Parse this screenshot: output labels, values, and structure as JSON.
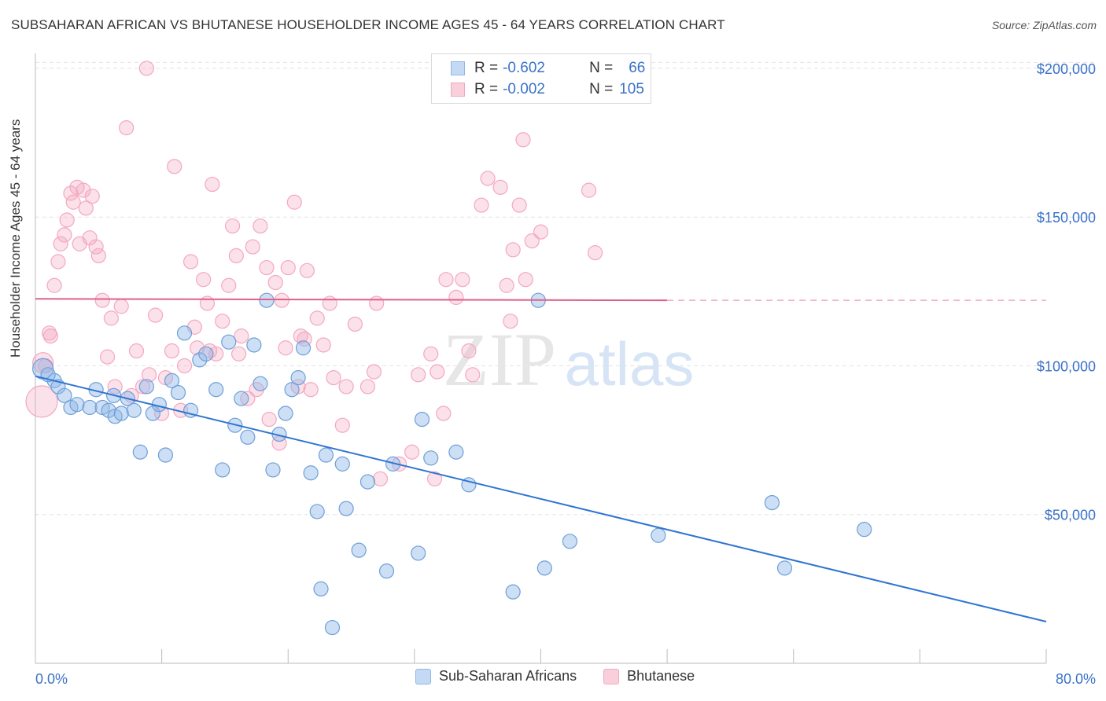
{
  "header": {
    "title": "SUBSAHARAN AFRICAN VS BHUTANESE HOUSEHOLDER INCOME AGES 45 - 64 YEARS CORRELATION CHART",
    "source": "Source: ZipAtlas.com"
  },
  "legend": {
    "rows": [
      {
        "r_label": "R =",
        "r_value": "-0.602",
        "n_label": "N =",
        "n_value": "66"
      },
      {
        "r_label": "R =",
        "r_value": "-0.002",
        "n_label": "N =",
        "n_value": "105"
      }
    ]
  },
  "watermark": {
    "zip": "ZIP",
    "atlas": "atlas"
  },
  "chart_data": {
    "type": "scatter",
    "title": "SUBSAHARAN AFRICAN VS BHUTANESE HOUSEHOLDER INCOME AGES 45 - 64 YEARS CORRELATION CHART",
    "xlabel": "",
    "ylabel": "Householder Income Ages 45 - 64 years",
    "xlim": [
      0,
      80
    ],
    "ylim": [
      0,
      205000
    ],
    "x_tick_labels": [
      "0.0%",
      "80.0%"
    ],
    "y_ticks": [
      50000,
      100000,
      150000,
      200000
    ],
    "y_tick_labels": [
      "$50,000",
      "$100,000",
      "$150,000",
      "$200,000"
    ],
    "grid": true,
    "legend_position": "bottom-center",
    "colors": {
      "blue": "#8fb8e8",
      "blue_line": "#2f75d1",
      "pink": "#f4a8c0",
      "pink_line": "#e0608a",
      "tick_text": "#3a72c8"
    },
    "series": [
      {
        "name": "Sub-Saharan Africans",
        "r": -0.602,
        "n": 66,
        "trend": {
          "x": [
            0,
            80
          ],
          "y": [
            96500,
            14000
          ],
          "dashed_after": null
        },
        "points": [
          [
            0.6,
            99000
          ],
          [
            1.5,
            95000
          ],
          [
            1.8,
            93000
          ],
          [
            2.3,
            90000
          ],
          [
            2.8,
            86000
          ],
          [
            3.3,
            87000
          ],
          [
            4.3,
            86000
          ],
          [
            4.8,
            92000
          ],
          [
            5.3,
            86000
          ],
          [
            5.8,
            85000
          ],
          [
            6.2,
            90000
          ],
          [
            6.3,
            83000
          ],
          [
            6.8,
            84000
          ],
          [
            7.3,
            89000
          ],
          [
            7.8,
            85000
          ],
          [
            8.3,
            71000
          ],
          [
            8.8,
            93000
          ],
          [
            9.3,
            84000
          ],
          [
            9.8,
            87000
          ],
          [
            10.3,
            70000
          ],
          [
            10.8,
            95000
          ],
          [
            11.3,
            91000
          ],
          [
            11.8,
            111000
          ],
          [
            12.3,
            85000
          ],
          [
            13.0,
            102000
          ],
          [
            13.5,
            104000
          ],
          [
            14.3,
            92000
          ],
          [
            14.8,
            65000
          ],
          [
            15.3,
            108000
          ],
          [
            15.8,
            80000
          ],
          [
            16.3,
            89000
          ],
          [
            16.8,
            76000
          ],
          [
            17.3,
            107000
          ],
          [
            17.8,
            94000
          ],
          [
            18.3,
            122000
          ],
          [
            18.8,
            65000
          ],
          [
            19.3,
            77000
          ],
          [
            19.8,
            84000
          ],
          [
            20.3,
            92000
          ],
          [
            20.8,
            96000
          ],
          [
            21.2,
            106000
          ],
          [
            21.8,
            64000
          ],
          [
            22.3,
            51000
          ],
          [
            22.6,
            25000
          ],
          [
            23.0,
            70000
          ],
          [
            23.5,
            12000
          ],
          [
            24.3,
            67000
          ],
          [
            24.6,
            52000
          ],
          [
            25.6,
            38000
          ],
          [
            26.3,
            61000
          ],
          [
            27.8,
            31000
          ],
          [
            28.3,
            67000
          ],
          [
            30.3,
            37000
          ],
          [
            30.6,
            82000
          ],
          [
            31.3,
            69000
          ],
          [
            33.3,
            71000
          ],
          [
            34.3,
            60000
          ],
          [
            37.8,
            24000
          ],
          [
            39.8,
            122000
          ],
          [
            40.3,
            32000
          ],
          [
            42.3,
            41000
          ],
          [
            49.3,
            43000
          ],
          [
            58.3,
            54000
          ],
          [
            59.3,
            32000
          ],
          [
            65.6,
            45000
          ],
          [
            1.0,
            97000
          ]
        ]
      },
      {
        "name": "Bhutanese",
        "r": -0.002,
        "n": 105,
        "trend": {
          "x": [
            0,
            50
          ],
          "y": [
            122500,
            122000
          ],
          "dashed_after": 50
        },
        "points": [
          [
            0.5,
            88000
          ],
          [
            0.6,
            101000
          ],
          [
            0.8,
            100000
          ],
          [
            1.1,
            111000
          ],
          [
            1.2,
            110000
          ],
          [
            1.5,
            127000
          ],
          [
            1.8,
            135000
          ],
          [
            2.0,
            141000
          ],
          [
            2.3,
            144000
          ],
          [
            2.5,
            149000
          ],
          [
            2.8,
            158000
          ],
          [
            3.0,
            155000
          ],
          [
            3.3,
            160000
          ],
          [
            3.5,
            141000
          ],
          [
            3.8,
            159000
          ],
          [
            4.0,
            153000
          ],
          [
            4.3,
            143000
          ],
          [
            4.5,
            157000
          ],
          [
            4.8,
            140000
          ],
          [
            5.0,
            137000
          ],
          [
            5.3,
            122000
          ],
          [
            5.7,
            103000
          ],
          [
            6.0,
            116000
          ],
          [
            6.3,
            93000
          ],
          [
            6.8,
            120000
          ],
          [
            7.2,
            180000
          ],
          [
            7.6,
            90000
          ],
          [
            8.0,
            105000
          ],
          [
            8.5,
            93000
          ],
          [
            8.8,
            200000
          ],
          [
            9.0,
            97000
          ],
          [
            9.5,
            117000
          ],
          [
            10.0,
            84000
          ],
          [
            10.3,
            96000
          ],
          [
            10.8,
            105000
          ],
          [
            11.0,
            167000
          ],
          [
            11.5,
            85000
          ],
          [
            11.8,
            100000
          ],
          [
            12.3,
            135000
          ],
          [
            12.6,
            113000
          ],
          [
            12.8,
            106000
          ],
          [
            13.3,
            129000
          ],
          [
            13.6,
            121000
          ],
          [
            13.8,
            105000
          ],
          [
            14.0,
            161000
          ],
          [
            14.3,
            104000
          ],
          [
            14.8,
            115000
          ],
          [
            15.3,
            127000
          ],
          [
            15.6,
            147000
          ],
          [
            15.9,
            137000
          ],
          [
            16.1,
            104000
          ],
          [
            16.3,
            110000
          ],
          [
            16.8,
            89000
          ],
          [
            17.2,
            140000
          ],
          [
            17.5,
            92000
          ],
          [
            17.8,
            147000
          ],
          [
            18.3,
            133000
          ],
          [
            18.5,
            82000
          ],
          [
            19.0,
            128000
          ],
          [
            19.3,
            74000
          ],
          [
            19.5,
            122000
          ],
          [
            19.8,
            106000
          ],
          [
            20.0,
            133000
          ],
          [
            20.5,
            155000
          ],
          [
            20.8,
            93000
          ],
          [
            21.0,
            110000
          ],
          [
            21.3,
            109000
          ],
          [
            21.5,
            132000
          ],
          [
            21.8,
            92000
          ],
          [
            22.3,
            116000
          ],
          [
            22.8,
            107000
          ],
          [
            23.3,
            121000
          ],
          [
            23.6,
            96000
          ],
          [
            24.3,
            80000
          ],
          [
            24.6,
            93000
          ],
          [
            25.3,
            114000
          ],
          [
            26.3,
            93000
          ],
          [
            26.8,
            98000
          ],
          [
            27.0,
            121000
          ],
          [
            27.3,
            62000
          ],
          [
            28.8,
            67000
          ],
          [
            29.8,
            71000
          ],
          [
            30.3,
            97000
          ],
          [
            31.3,
            104000
          ],
          [
            31.6,
            62000
          ],
          [
            31.8,
            98000
          ],
          [
            32.3,
            84000
          ],
          [
            32.5,
            129000
          ],
          [
            33.3,
            123000
          ],
          [
            33.8,
            129000
          ],
          [
            34.3,
            105000
          ],
          [
            34.6,
            97000
          ],
          [
            35.3,
            154000
          ],
          [
            35.8,
            163000
          ],
          [
            36.8,
            160000
          ],
          [
            37.3,
            127000
          ],
          [
            37.8,
            139000
          ],
          [
            38.3,
            154000
          ],
          [
            38.6,
            176000
          ],
          [
            38.8,
            129000
          ],
          [
            39.3,
            142000
          ],
          [
            40.0,
            145000
          ],
          [
            43.8,
            159000
          ],
          [
            44.3,
            138000
          ],
          [
            37.6,
            115000
          ]
        ]
      }
    ]
  }
}
